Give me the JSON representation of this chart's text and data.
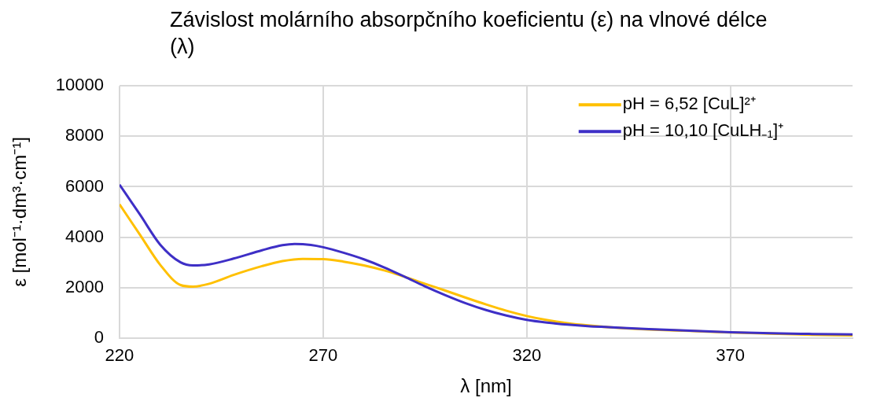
{
  "chart_data": {
    "type": "line",
    "title": "Závislost molárního absorpčního koeficientu (ε) na vlnové délce (λ)",
    "xlabel": "λ [nm]",
    "ylabel": "ε [mol⁻¹·dm³·cm⁻¹]",
    "xlim": [
      220,
      400
    ],
    "xticks": [
      220,
      270,
      320,
      370
    ],
    "ylim": [
      0,
      10000
    ],
    "yticks": [
      0,
      2000,
      4000,
      6000,
      8000,
      10000
    ],
    "grid": true,
    "legend": "top right",
    "marker": "none",
    "line_style": "solid",
    "series": [
      {
        "name": "pH = 6,52 [CuL]²⁺",
        "color": "#ffc000",
        "x": [
          220,
          225,
          230,
          235,
          238,
          242,
          248,
          255,
          260,
          265,
          270,
          275,
          280,
          285,
          290,
          295,
          300,
          305,
          310,
          315,
          320,
          325,
          330,
          335,
          340,
          350,
          360,
          370,
          380,
          390,
          400
        ],
        "values": [
          5300,
          4100,
          2900,
          2100,
          2040,
          2150,
          2500,
          2850,
          3050,
          3140,
          3130,
          3030,
          2880,
          2680,
          2430,
          2150,
          1880,
          1600,
          1330,
          1080,
          870,
          710,
          590,
          500,
          430,
          340,
          280,
          220,
          170,
          130,
          100
        ]
      },
      {
        "name": "pH = 10,10 [CuLH₋₁]⁺",
        "color": "#3e2fc6",
        "x": [
          220,
          225,
          230,
          235,
          238,
          242,
          248,
          255,
          260,
          263,
          267,
          270,
          275,
          280,
          285,
          290,
          295,
          300,
          305,
          310,
          315,
          320,
          325,
          330,
          335,
          340,
          350,
          360,
          370,
          380,
          390,
          400
        ],
        "values": [
          6080,
          4900,
          3700,
          3000,
          2880,
          2920,
          3150,
          3480,
          3680,
          3730,
          3690,
          3600,
          3380,
          3120,
          2800,
          2430,
          2050,
          1700,
          1380,
          1110,
          890,
          720,
          610,
          530,
          470,
          430,
          350,
          290,
          230,
          190,
          160,
          140
        ]
      }
    ]
  }
}
